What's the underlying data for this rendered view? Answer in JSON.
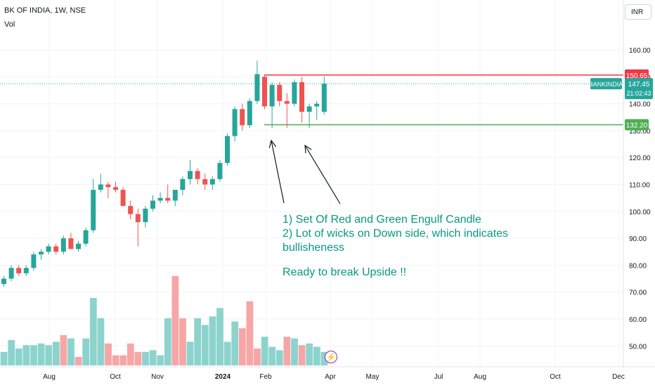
{
  "header": {
    "symbol_title": "BK OF INDIA, 1W, NSE",
    "indicator_label": "Vol",
    "currency_button": "INR"
  },
  "annotation": {
    "lines": [
      "1) Set Of Red and Green Engulf Candle",
      "2) Lot of wicks on Down side, which indicates",
      "bullisheness",
      "",
      "Ready to break Upside !!"
    ]
  },
  "price_labels": {
    "resistance": "150.65",
    "support": "132.20",
    "ticker": "BANKINDIA",
    "last": "147.45",
    "countdown": "21:02:43"
  },
  "colors": {
    "up": "#26a69a",
    "down": "#ef5350",
    "resistance_line": "#f23645",
    "support_line": "#4caf50",
    "text_annotation": "#089981",
    "volume_up": "#8dd3cd",
    "volume_down": "#f6a6a6"
  },
  "chart_data": {
    "type": "candlestick",
    "title": "BK OF INDIA, 1W, NSE",
    "yaxis": {
      "min": 40,
      "max": 170,
      "ticks": [
        "160.00",
        "150.00",
        "140.00",
        "130.00",
        "120.00",
        "110.00",
        "100.00",
        "90.00",
        "80.00",
        "70.00",
        "60.00",
        "50.00"
      ]
    },
    "xaxis_labels": [
      "Aug",
      "Oct",
      "Nov",
      "2024",
      "Feb",
      "Apr",
      "May",
      "Jul",
      "Aug",
      "Oct",
      "Dec"
    ],
    "candles": [
      {
        "o": 73,
        "h": 76,
        "l": 72,
        "c": 75
      },
      {
        "o": 75,
        "h": 80,
        "l": 74,
        "c": 79
      },
      {
        "o": 79,
        "h": 80,
        "l": 76,
        "c": 77
      },
      {
        "o": 77,
        "h": 80,
        "l": 76,
        "c": 79
      },
      {
        "o": 79,
        "h": 85,
        "l": 78,
        "c": 84
      },
      {
        "o": 84,
        "h": 86,
        "l": 82,
        "c": 85
      },
      {
        "o": 85,
        "h": 88,
        "l": 84,
        "c": 87
      },
      {
        "o": 87,
        "h": 88,
        "l": 84,
        "c": 85
      },
      {
        "o": 85,
        "h": 91,
        "l": 84,
        "c": 90
      },
      {
        "o": 90,
        "h": 92,
        "l": 86,
        "c": 86
      },
      {
        "o": 86,
        "h": 89,
        "l": 85,
        "c": 88
      },
      {
        "o": 88,
        "h": 94,
        "l": 87,
        "c": 93
      },
      {
        "o": 93,
        "h": 112,
        "l": 92,
        "c": 108
      },
      {
        "o": 108,
        "h": 114,
        "l": 107,
        "c": 110
      },
      {
        "o": 110,
        "h": 111,
        "l": 105,
        "c": 109
      },
      {
        "o": 109,
        "h": 111,
        "l": 107,
        "c": 108
      },
      {
        "o": 108,
        "h": 109,
        "l": 102,
        "c": 102
      },
      {
        "o": 102,
        "h": 104,
        "l": 97,
        "c": 99
      },
      {
        "o": 99,
        "h": 101,
        "l": 87,
        "c": 96
      },
      {
        "o": 96,
        "h": 102,
        "l": 94,
        "c": 101
      },
      {
        "o": 101,
        "h": 106,
        "l": 100,
        "c": 104
      },
      {
        "o": 104,
        "h": 107,
        "l": 103,
        "c": 105
      },
      {
        "o": 105,
        "h": 110,
        "l": 103,
        "c": 104
      },
      {
        "o": 104,
        "h": 108,
        "l": 102,
        "c": 108
      },
      {
        "o": 108,
        "h": 113,
        "l": 106,
        "c": 112
      },
      {
        "o": 112,
        "h": 119,
        "l": 110,
        "c": 115
      },
      {
        "o": 115,
        "h": 116,
        "l": 110,
        "c": 112
      },
      {
        "o": 112,
        "h": 114,
        "l": 108,
        "c": 110
      },
      {
        "o": 110,
        "h": 113,
        "l": 108,
        "c": 112
      },
      {
        "o": 112,
        "h": 119,
        "l": 111,
        "c": 118
      },
      {
        "o": 118,
        "h": 129,
        "l": 117,
        "c": 128
      },
      {
        "o": 128,
        "h": 139,
        "l": 126,
        "c": 138
      },
      {
        "o": 138,
        "h": 140,
        "l": 130,
        "c": 132
      },
      {
        "o": 132,
        "h": 142,
        "l": 131,
        "c": 141
      },
      {
        "o": 141,
        "h": 156,
        "l": 140,
        "c": 151
      },
      {
        "o": 150,
        "h": 151,
        "l": 138,
        "c": 139
      },
      {
        "o": 139,
        "h": 148,
        "l": 131,
        "c": 147
      },
      {
        "o": 147,
        "h": 148,
        "l": 139,
        "c": 141
      },
      {
        "o": 141,
        "h": 144,
        "l": 131,
        "c": 140
      },
      {
        "o": 140,
        "h": 149,
        "l": 139,
        "c": 148
      },
      {
        "o": 148,
        "h": 150,
        "l": 133,
        "c": 137
      },
      {
        "o": 137,
        "h": 140,
        "l": 131,
        "c": 139
      },
      {
        "o": 139,
        "h": 141,
        "l": 134,
        "c": 140
      },
      {
        "o": 137,
        "h": 150,
        "l": 136,
        "c": 147.45
      }
    ],
    "volumes": [
      {
        "v": 0.08,
        "d": 0
      },
      {
        "v": 0.15,
        "d": 0
      },
      {
        "v": 0.1,
        "d": 0
      },
      {
        "v": 0.12,
        "d": 0
      },
      {
        "v": 0.12,
        "d": 0
      },
      {
        "v": 0.13,
        "d": 0
      },
      {
        "v": 0.12,
        "d": 0
      },
      {
        "v": 0.14,
        "d": 0
      },
      {
        "v": 0.18,
        "d": 1
      },
      {
        "v": 0.16,
        "d": 0
      },
      {
        "v": 0.05,
        "d": 1
      },
      {
        "v": 0.16,
        "d": 0
      },
      {
        "v": 0.4,
        "d": 0
      },
      {
        "v": 0.28,
        "d": 0
      },
      {
        "v": 0.13,
        "d": 1
      },
      {
        "v": 0.06,
        "d": 1
      },
      {
        "v": 0.06,
        "d": 1
      },
      {
        "v": 0.13,
        "d": 1
      },
      {
        "v": 0.08,
        "d": 1
      },
      {
        "v": 0.08,
        "d": 0
      },
      {
        "v": 0.09,
        "d": 0
      },
      {
        "v": 0.06,
        "d": 0
      },
      {
        "v": 0.28,
        "d": 0
      },
      {
        "v": 0.53,
        "d": 1
      },
      {
        "v": 0.28,
        "d": 1
      },
      {
        "v": 0.14,
        "d": 0
      },
      {
        "v": 0.28,
        "d": 0
      },
      {
        "v": 0.24,
        "d": 0
      },
      {
        "v": 0.29,
        "d": 0
      },
      {
        "v": 0.34,
        "d": 0
      },
      {
        "v": 0.14,
        "d": 0
      },
      {
        "v": 0.26,
        "d": 0
      },
      {
        "v": 0.22,
        "d": 1
      },
      {
        "v": 0.38,
        "d": 1
      },
      {
        "v": 0.1,
        "d": 1
      },
      {
        "v": 0.17,
        "d": 0
      },
      {
        "v": 0.11,
        "d": 0
      },
      {
        "v": 0.09,
        "d": 0
      },
      {
        "v": 0.17,
        "d": 1
      },
      {
        "v": 0.16,
        "d": 0
      },
      {
        "v": 0.12,
        "d": 1
      },
      {
        "v": 0.13,
        "d": 0
      },
      {
        "v": 0.11,
        "d": 0
      },
      {
        "v": 0.08,
        "d": 0
      }
    ],
    "resistance_level": 150.65,
    "support_level": 132.2,
    "last_price": 147.45
  }
}
